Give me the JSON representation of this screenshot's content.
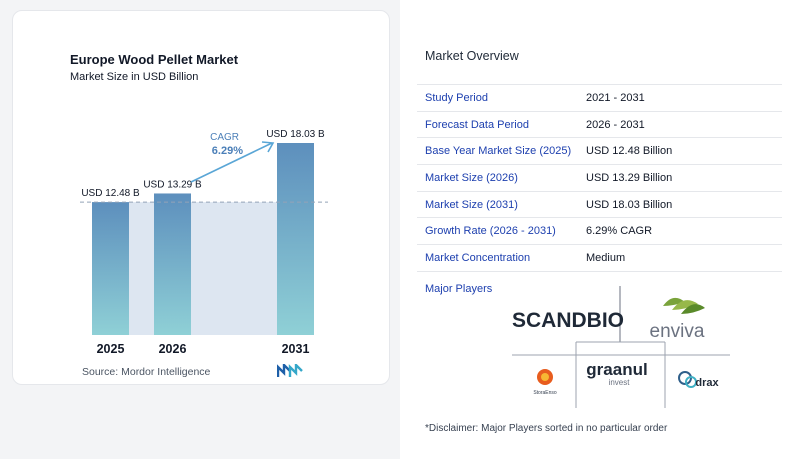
{
  "chart_data": {
    "type": "bar",
    "title": "Europe Wood Pellet Market",
    "subtitle": "Market Size in USD Billion",
    "categories": [
      "2025",
      "2026",
      "2031"
    ],
    "values": [
      12.48,
      13.29,
      18.03
    ],
    "data_labels": [
      "USD 12.48 B",
      "USD 13.29 B",
      "USD 18.03 B"
    ],
    "cagr_label": "CAGR",
    "cagr_value": "6.29%",
    "ylim": [
      0,
      18.03
    ],
    "grid": false,
    "colors": {
      "bar_top": "#5d8fbd",
      "bar_bottom": "#8fd0d6",
      "band": "#dde6f1",
      "arrow": "#5aa6d6",
      "cagr_text": "#4b7fb8"
    }
  },
  "source": "Source:  Mordor Intelligence",
  "source_logo_icon": "mordor-intelligence-logo",
  "overview": {
    "title": "Market Overview",
    "rows": [
      {
        "key": "Study Period",
        "value": "2021 - 2031"
      },
      {
        "key": "Forecast Data Period",
        "value": "2026 - 2031"
      },
      {
        "key": "Base Year Market Size (2025)",
        "value": "USD 12.48 Billion"
      },
      {
        "key": "Market Size (2026)",
        "value": "USD 13.29 Billion"
      },
      {
        "key": "Market Size (2031)",
        "value": "USD 18.03 Billion"
      },
      {
        "key": "Growth Rate (2026 - 2031)",
        "value": "6.29% CAGR"
      },
      {
        "key": "Market Concentration",
        "value": "Medium"
      }
    ]
  },
  "players": {
    "title": "Major Players",
    "logos": [
      "SCANDBIO",
      "enviva",
      "StoraEnso",
      "graanul",
      "invest",
      "drax"
    ]
  },
  "disclaimer": "*Disclaimer: Major Players sorted in no particular order"
}
